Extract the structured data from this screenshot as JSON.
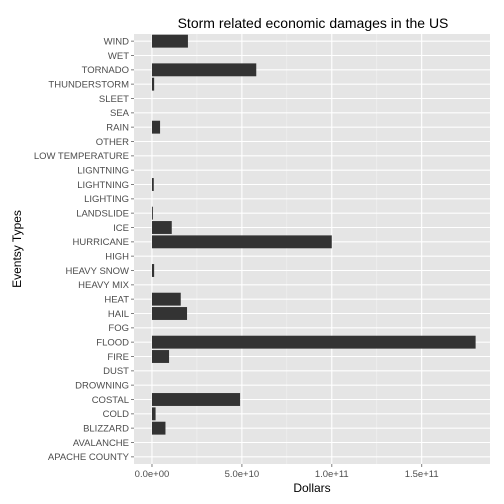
{
  "chart_data": {
    "type": "bar",
    "orientation": "horizontal",
    "title": "Storm related economic damages in the US",
    "xlabel": "Dollars",
    "ylabel": "Eventsy Types",
    "xlim": [
      -10000000000.0,
      188000000000.0
    ],
    "x_ticks": [
      0,
      50000000000.0,
      100000000000.0,
      150000000000.0
    ],
    "x_tick_labels": [
      "0.0e+00",
      "5.0e+10",
      "1.0e+11",
      "1.5e+11"
    ],
    "grid": true,
    "legend": "none",
    "categories": [
      "WIND",
      "WET",
      "TORNADO",
      "THUNDERSTORM",
      "SLEET",
      "SEA",
      "RAIN",
      "OTHER",
      "LOW TEMPERATURE",
      "LIGNTNING",
      "LIGHTNING",
      "LIGHTING",
      "LANDSLIDE",
      "ICE",
      "HURRICANE",
      "HIGH",
      "HEAVY SNOW",
      "HEAVY MIX",
      "HEAT",
      "HAIL",
      "FOG",
      "FLOOD",
      "FIRE",
      "DUST",
      "DROWNING",
      "COSTAL",
      "COLD",
      "BLIZZARD",
      "AVALANCHE",
      "APACHE COUNTY"
    ],
    "values": [
      20000000000.0,
      0,
      58000000000.0,
      1200000000.0,
      0,
      0,
      4500000000.0,
      0,
      0,
      0,
      1000000000.0,
      0,
      500000000.0,
      11000000000.0,
      100000000000.0,
      0,
      1200000000.0,
      0,
      16000000000.0,
      19500000000.0,
      0,
      180000000000.0,
      9500000000.0,
      0,
      0,
      49000000000.0,
      2000000000.0,
      7500000000.0,
      0,
      0
    ],
    "bar_color": "#333333",
    "panel_color": "#e5e5e5",
    "grid_color": "#ffffff"
  }
}
